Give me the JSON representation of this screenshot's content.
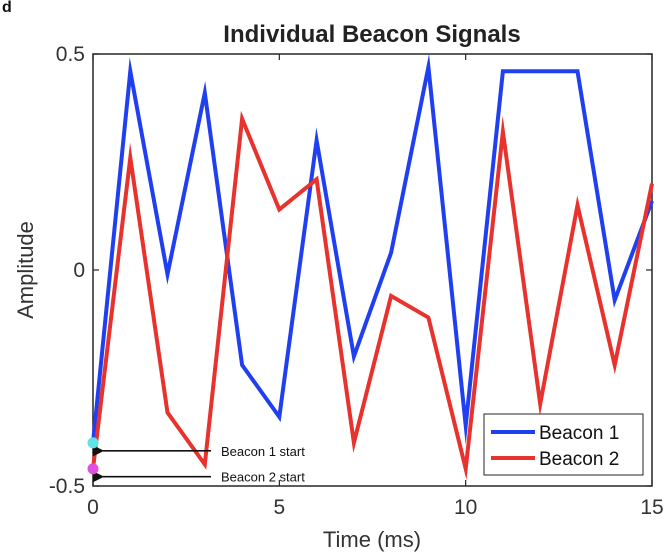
{
  "panel_letter": "d",
  "chart_data": {
    "type": "line",
    "title": "Individual Beacon Signals",
    "xlabel": "Time (ms)",
    "ylabel": "Amplitude",
    "xlim": [
      0,
      15
    ],
    "ylim": [
      -0.5,
      0.5
    ],
    "x_ticks": [
      0,
      5,
      10,
      15
    ],
    "y_ticks": [
      -0.5,
      0,
      0.5
    ],
    "x_tick_labels": [
      "0",
      "5",
      "10",
      "15"
    ],
    "y_tick_labels": [
      "-0.5",
      "0",
      "0.5"
    ],
    "grid": false,
    "legend_position": "bottom-right",
    "series": [
      {
        "name": "Beacon 1",
        "color": "#1f3ff0",
        "x": [
          0,
          1,
          2,
          3,
          4,
          5,
          6,
          7,
          8,
          9,
          10,
          11,
          12,
          13,
          14,
          15
        ],
        "y": [
          -0.4,
          0.46,
          -0.01,
          0.41,
          -0.22,
          -0.34,
          0.3,
          -0.2,
          0.04,
          0.47,
          -0.36,
          0.46,
          0.46,
          0.46,
          -0.07,
          0.16
        ]
      },
      {
        "name": "Beacon 2",
        "color": "#e8322e",
        "x": [
          0,
          1,
          2,
          3,
          4,
          5,
          6,
          7,
          8,
          9,
          10,
          11,
          12,
          13,
          14,
          15
        ],
        "y": [
          -0.46,
          0.26,
          -0.33,
          -0.45,
          0.35,
          0.14,
          0.21,
          -0.4,
          -0.06,
          -0.11,
          -0.46,
          0.32,
          -0.31,
          0.15,
          -0.22,
          0.2
        ]
      }
    ],
    "markers": [
      {
        "label": "Beacon 1 start",
        "x": 0,
        "y": -0.4,
        "color": "#5fe3e8"
      },
      {
        "label": "Beacon 2 start",
        "x": 0,
        "y": -0.46,
        "color": "#e04fe0"
      }
    ]
  }
}
